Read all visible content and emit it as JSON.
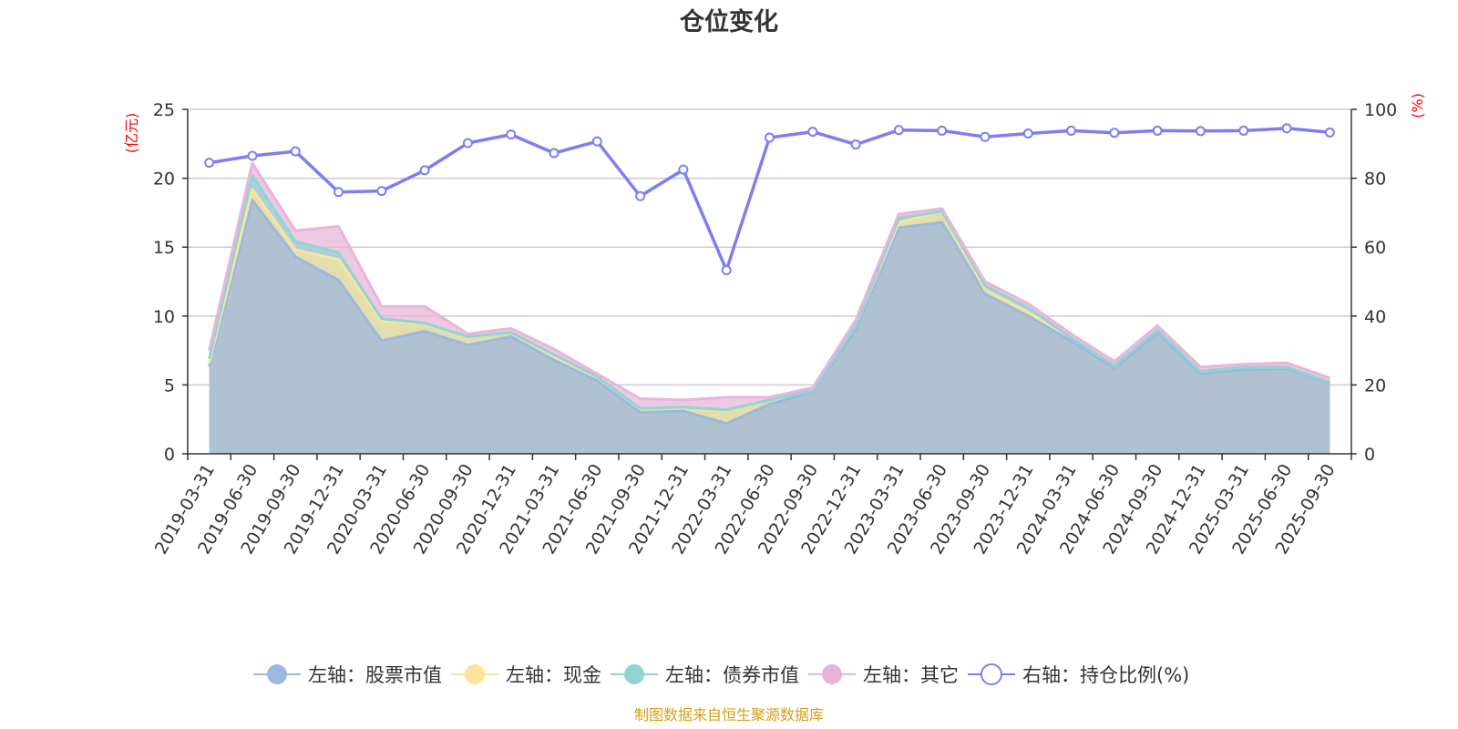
{
  "chart_data": {
    "type": "area",
    "title": "仓位变化",
    "left_unit": "(亿元)",
    "right_unit": "(%)",
    "ylim_left": [
      0,
      25
    ],
    "ylim_right": [
      0,
      100
    ],
    "yticks_left": [
      "0",
      "5",
      "10",
      "15",
      "20",
      "25"
    ],
    "yticks_right": [
      "0",
      "20",
      "40",
      "60",
      "80",
      "100"
    ],
    "grid": true,
    "legend_position": "bottom",
    "source_note": "制图数据来自恒生聚源数据库",
    "categories": [
      "2019-03-31",
      "2019-06-30",
      "2019-09-30",
      "2019-12-31",
      "2020-03-31",
      "2020-06-30",
      "2020-09-30",
      "2020-12-31",
      "2021-03-31",
      "2021-06-30",
      "2021-09-30",
      "2021-12-31",
      "2022-03-31",
      "2022-06-30",
      "2022-09-30",
      "2022-12-31",
      "2023-03-31",
      "2023-06-30",
      "2023-09-30",
      "2023-12-31",
      "2024-03-31",
      "2024-06-30",
      "2024-09-30",
      "2024-12-31",
      "2025-03-31",
      "2025-06-30",
      "2025-09-30"
    ],
    "series": [
      {
        "name": "左轴：股票市值",
        "axis": "left",
        "stack": true,
        "color": "#9db7e0",
        "values": [
          6.3,
          18.4,
          14.3,
          12.6,
          8.2,
          8.9,
          7.9,
          8.5,
          6.8,
          5.3,
          3.0,
          3.1,
          2.2,
          3.6,
          4.5,
          9.0,
          16.4,
          16.8,
          11.6,
          10.0,
          8.2,
          6.2,
          8.8,
          5.8,
          6.1,
          6.2,
          5.1
        ]
      },
      {
        "name": "左轴：现金",
        "axis": "left",
        "stack": true,
        "color": "#f9e49a",
        "values": [
          0.3,
          0.8,
          0.5,
          1.5,
          1.4,
          0.6,
          0.6,
          0.3,
          0.3,
          0.3,
          0.3,
          0.3,
          1.0,
          0.3,
          0.1,
          0.3,
          0.4,
          0.8,
          0.3,
          0.3,
          0.2,
          0.2,
          0.2,
          0.2,
          0.2,
          0.1,
          0.1
        ]
      },
      {
        "name": "左轴：债券市值",
        "axis": "left",
        "stack": true,
        "color": "#90d4d4",
        "values": [
          0.3,
          1.0,
          0.6,
          0.5,
          0.2,
          0.0,
          0.0,
          0.0,
          0.1,
          0.0,
          0.0,
          0.0,
          0.0,
          0.0,
          0.0,
          0.0,
          0.3,
          0.0,
          0.3,
          0.3,
          0.0,
          0.0,
          0.0,
          0.0,
          0.0,
          0.0,
          0.0
        ]
      },
      {
        "name": "左轴：其它",
        "axis": "left",
        "stack": true,
        "color": "#e8b4da",
        "values": [
          0.6,
          0.9,
          0.8,
          1.9,
          0.9,
          1.2,
          0.2,
          0.3,
          0.4,
          0.2,
          0.7,
          0.5,
          0.9,
          0.2,
          0.2,
          0.4,
          0.3,
          0.2,
          0.3,
          0.3,
          0.3,
          0.3,
          0.3,
          0.3,
          0.2,
          0.3,
          0.3
        ]
      },
      {
        "name": "右轴：持仓比例(%)",
        "axis": "right",
        "stack": false,
        "color": "#7b7ff0",
        "values": [
          84.5,
          86.5,
          87.8,
          76.0,
          76.3,
          82.3,
          90.2,
          92.7,
          87.3,
          90.7,
          74.8,
          82.5,
          53.3,
          91.8,
          93.5,
          89.8,
          94.0,
          93.8,
          92.0,
          93.0,
          93.8,
          93.2,
          93.8,
          93.7,
          93.8,
          94.5,
          93.3
        ]
      }
    ]
  }
}
